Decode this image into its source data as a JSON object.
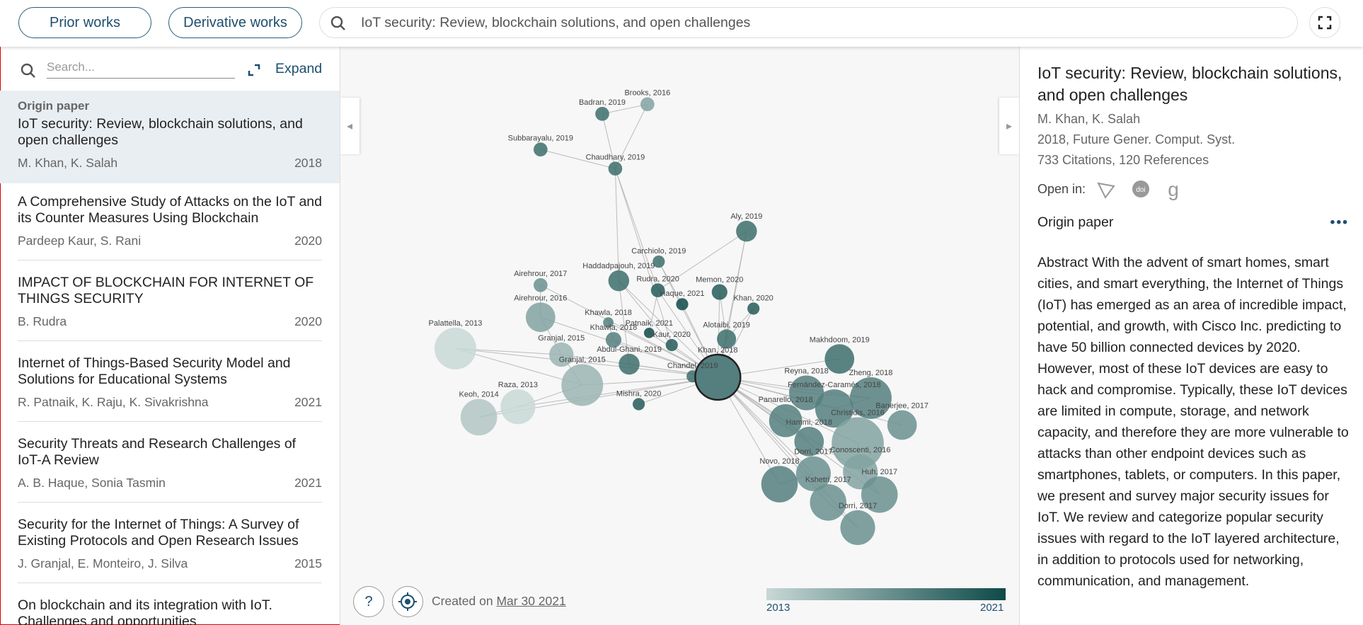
{
  "toolbar": {
    "prior_works": "Prior works",
    "derivative_works": "Derivative works",
    "search_query": "IoT security: Review, blockchain solutions, and open challenges"
  },
  "list": {
    "search_placeholder": "Search...",
    "expand": "Expand",
    "origin_label": "Origin paper",
    "items": [
      {
        "title": "IoT security: Review, blockchain solutions, and open challenges",
        "authors": "M. Khan, K. Salah",
        "year": "2018"
      },
      {
        "title": "A Comprehensive Study of Attacks on the IoT and its Counter Measures Using Blockchain",
        "authors": "Pardeep Kaur, S. Rani",
        "year": "2020"
      },
      {
        "title": "IMPACT OF BLOCKCHAIN FOR INTERNET OF THINGS SECURITY",
        "authors": "B. Rudra",
        "year": "2020"
      },
      {
        "title": "Internet of Things-Based Security Model and Solutions for Educational Systems",
        "authors": "R. Patnaik, K. Raju, K. Sivakrishna",
        "year": "2021"
      },
      {
        "title": "Security Threats and Research Challenges of IoT-A Review",
        "authors": "A. B. Haque, Sonia Tasmin",
        "year": "2021"
      },
      {
        "title": "Security for the Internet of Things: A Survey of Existing Protocols and Open Research Issues",
        "authors": "J. Granjal, E. Monteiro, J. Silva",
        "year": "2015"
      },
      {
        "title": "On blockchain and its integration with IoT. Challenges and opportunities"
      }
    ]
  },
  "graph": {
    "nodes": [
      "Brooks, 2016",
      "Badran, 2019",
      "Subbarayalu, 2019",
      "Chaudhary, 2019",
      "Aly, 2019",
      "Carchiolo, 2019",
      "Airehrour, 2017",
      "Haddadpajouh, 2019",
      "Rudra, 2020",
      "Memon, 2020",
      "Haque, 2021",
      "Khan, 2020",
      "Airehrour, 2016",
      "Khawla, 2018",
      "Patnaik, 2021",
      "Khawla, 2018",
      "Kaur, 2020",
      "Alotaibi, 2019",
      "Palattella, 2013",
      "Granjal, 2015",
      "Abdul-Ghani, 2019",
      "Makhdoom, 2019",
      "Chandel, 2019",
      "Khan, 2018",
      "Granjal, 2015",
      "Reyna, 2018",
      "Zheng, 2018",
      "Fernández-Caramés, 2018",
      "Raza, 2013",
      "Mishra, 2020",
      "Keoh, 2014",
      "Banerjee, 2017",
      "Panarello, 2018",
      "Christidis, 2016",
      "Hammi, 2018",
      "Conoscenti, 2016",
      "Dorri, 2017",
      "Novo, 2018",
      "Huh, 2017",
      "Kshetri, 2017",
      "Dorri, 2017"
    ],
    "created_label": "Created on",
    "created_date": "Mar 30 2021",
    "help": "?",
    "legend": {
      "min": "2013",
      "max": "2021"
    }
  },
  "detail": {
    "title": "IoT security: Review, blockchain solutions, and open challenges",
    "authors": "M. Khan, K. Salah",
    "venue": "2018, Future Gener. Comput. Syst.",
    "stats": "733 Citations, 120 References",
    "open_in": "Open in:",
    "section": "Origin paper",
    "abstract": "Abstract With the advent of smart homes, smart cities, and smart everything, the Internet of Things (IoT) has emerged as an area of incredible impact, potential, and growth, with Cisco Inc. predicting to have 50 billion connected devices by 2020. However, most of these IoT devices are easy to hack and compromise. Typically, these IoT devices are limited in compute, storage, and network capacity, and therefore they are more vulnerable to attacks than other endpoint devices such as smartphones, tablets, or computers. In this paper, we present and survey major security issues for IoT. We review and categorize popular security issues with regard to the IoT layered architecture, in addition to protocols used for networking, communication, and management."
  }
}
